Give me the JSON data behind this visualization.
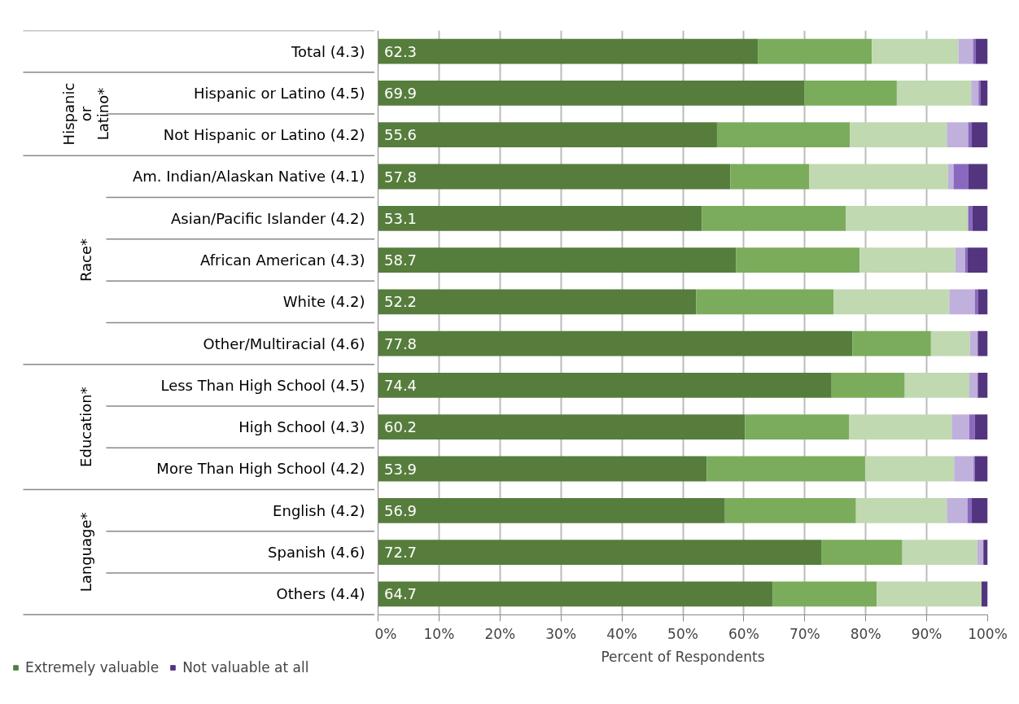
{
  "chart_data": {
    "type": "bar",
    "orientation": "horizontal",
    "stacked": true,
    "xlabel": "Percent of Respondents",
    "categories": [
      "Total (4.3)",
      "Hispanic or Latino (4.5)",
      "Not Hispanic or Latino (4.2)",
      "Am. Indian/Alaskan Native (4.1)",
      "Asian/Pacific Islander (4.2)",
      "African American (4.3)",
      "White (4.2)",
      "Other/Multiracial (4.6)",
      "Less Than High School (4.5)",
      "High School (4.3)",
      "More Than High School (4.2)",
      "English (4.2)",
      "Spanish (4.6)",
      "Others (4.4)"
    ],
    "series": [
      {
        "name": "Extremely valuable",
        "color": "#567d3c",
        "values": [
          62.3,
          69.9,
          55.6,
          57.8,
          53.1,
          58.7,
          52.2,
          77.8,
          74.4,
          60.2,
          53.9,
          56.9,
          72.7,
          64.7
        ],
        "value_labels": [
          "62.3",
          "69.9",
          "55.6",
          "57.8",
          "53.1",
          "58.7",
          "52.2",
          "77.8",
          "74.4",
          "60.2",
          "53.9",
          "56.9",
          "72.7",
          "64.7"
        ]
      },
      {
        "color": "#7aac5c",
        "values": [
          18.7,
          15.2,
          21.8,
          12.9,
          23.6,
          20.3,
          22.5,
          12.9,
          12.0,
          17.1,
          26.0,
          21.5,
          13.3,
          17.1
        ]
      },
      {
        "color": "#c0d9b0",
        "values": [
          14.2,
          12.2,
          15.9,
          22.8,
          20.1,
          15.7,
          19.0,
          6.4,
          10.6,
          16.8,
          14.6,
          14.9,
          12.3,
          17.2
        ]
      },
      {
        "color": "#c0b0dc",
        "values": [
          2.4,
          1.2,
          3.5,
          0.9,
          0,
          1.6,
          4.2,
          1.2,
          1.3,
          2.9,
          3.2,
          3.4,
          1.0,
          0
        ]
      },
      {
        "color": "#8a68c0",
        "values": [
          0.4,
          0.3,
          0.6,
          2.4,
          0.7,
          0.4,
          0.5,
          0.1,
          0.1,
          0.9,
          0.2,
          0.7,
          0,
          0
        ]
      },
      {
        "name": "Not valuable at all",
        "color": "#52357e",
        "values": [
          2.0,
          1.2,
          2.6,
          3.2,
          2.5,
          3.3,
          1.6,
          1.6,
          1.6,
          2.1,
          2.1,
          2.6,
          0.7,
          1.0
        ]
      }
    ],
    "xlim": [
      0,
      100
    ],
    "xticks": [
      {
        "value": 0,
        "label": "0%"
      },
      {
        "value": 10,
        "label": "10%"
      },
      {
        "value": 20,
        "label": "20%"
      },
      {
        "value": 30,
        "label": "30%"
      },
      {
        "value": 40,
        "label": "40%"
      },
      {
        "value": 50,
        "label": "50%"
      },
      {
        "value": 60,
        "label": "60%"
      },
      {
        "value": 70,
        "label": "70%"
      },
      {
        "value": 80,
        "label": "80%"
      },
      {
        "value": 90,
        "label": "90%"
      },
      {
        "value": 100,
        "label": "100%"
      }
    ],
    "grid": "x",
    "legend": "bottom left",
    "annotations": [
      "Hispanic or Latino*",
      "Race*",
      "Education*",
      "Language*"
    ]
  }
}
